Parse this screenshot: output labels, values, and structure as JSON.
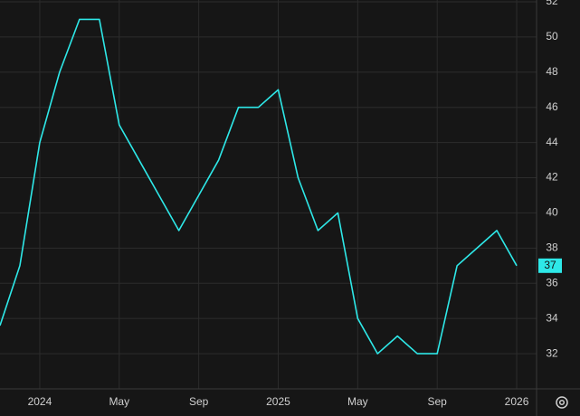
{
  "chart_data": {
    "type": "line",
    "x": [
      "2023-11",
      "2023-12",
      "2024-01",
      "2024-02",
      "2024-03",
      "2024-04",
      "2024-05",
      "2024-06",
      "2024-07",
      "2024-08",
      "2024-09",
      "2024-10",
      "2024-11",
      "2024-12",
      "2025-01",
      "2025-02",
      "2025-03",
      "2025-04",
      "2025-05",
      "2025-06",
      "2025-07",
      "2025-08",
      "2025-09",
      "2025-10",
      "2025-11",
      "2025-12",
      "2026-01"
    ],
    "series": [
      {
        "color": "#2ee8e8",
        "values": [
          33.6,
          37,
          44,
          48,
          51,
          51,
          45,
          43,
          41,
          39,
          41,
          43,
          46,
          46,
          47,
          42,
          39,
          40,
          34,
          32,
          33,
          32,
          32,
          37,
          38,
          39,
          37
        ]
      }
    ],
    "xlim": [
      "2023-11",
      "2026-02"
    ],
    "xticks": [
      {
        "value": "2024-01",
        "label": "2024"
      },
      {
        "value": "2024-05",
        "label": "May"
      },
      {
        "value": "2024-09",
        "label": "Sep"
      },
      {
        "value": "2025-01",
        "label": "2025"
      },
      {
        "value": "2025-05",
        "label": "May"
      },
      {
        "value": "2025-09",
        "label": "Sep"
      },
      {
        "value": "2026-01",
        "label": "2026"
      }
    ],
    "ylim": [
      30,
      52.1
    ],
    "yticks": [
      32,
      34,
      36,
      38,
      40,
      42,
      44,
      46,
      48,
      50,
      52
    ],
    "grid": true
  }
}
